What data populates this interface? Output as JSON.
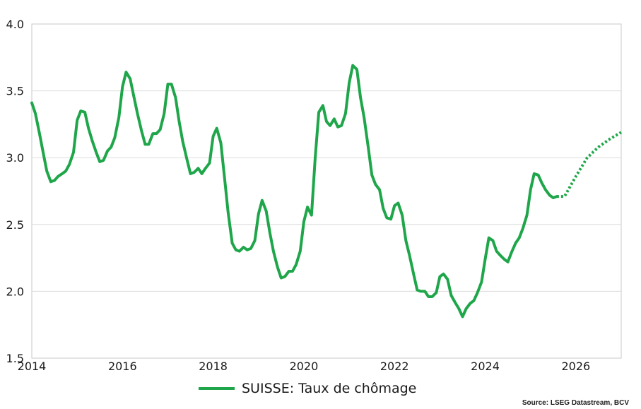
{
  "chart_data": {
    "type": "line",
    "title": "",
    "xlabel": "",
    "ylabel": "",
    "xlim": [
      2014,
      2027
    ],
    "ylim": [
      1.5,
      4.0
    ],
    "x_ticks": [
      {
        "value": 2014,
        "label": "2014"
      },
      {
        "value": 2016,
        "label": "2016"
      },
      {
        "value": 2018,
        "label": "2018"
      },
      {
        "value": 2020,
        "label": "2020"
      },
      {
        "value": 2022,
        "label": "2022"
      },
      {
        "value": 2024,
        "label": "2024"
      },
      {
        "value": 2026,
        "label": "2026"
      }
    ],
    "y_ticks": [
      {
        "value": 1.5,
        "label": "1.5"
      },
      {
        "value": 2.0,
        "label": "2.0"
      },
      {
        "value": 2.5,
        "label": "2.5"
      },
      {
        "value": 3.0,
        "label": "3.0"
      },
      {
        "value": 3.5,
        "label": "3.5"
      },
      {
        "value": 4.0,
        "label": "4.0"
      }
    ],
    "grid": "horizontal",
    "legend_position": "bottom-center",
    "series": [
      {
        "name": "SUISSE: Taux de chômage",
        "color": "#1fa64a",
        "style": "solid",
        "x": [
          2014.0,
          2014.08,
          2014.17,
          2014.25,
          2014.33,
          2014.42,
          2014.5,
          2014.58,
          2014.67,
          2014.75,
          2014.83,
          2014.92,
          2015.0,
          2015.08,
          2015.17,
          2015.25,
          2015.33,
          2015.42,
          2015.5,
          2015.58,
          2015.67,
          2015.75,
          2015.83,
          2015.92,
          2016.0,
          2016.08,
          2016.17,
          2016.25,
          2016.33,
          2016.42,
          2016.5,
          2016.58,
          2016.67,
          2016.75,
          2016.83,
          2016.92,
          2017.0,
          2017.08,
          2017.17,
          2017.25,
          2017.33,
          2017.42,
          2017.5,
          2017.58,
          2017.67,
          2017.75,
          2017.83,
          2017.92,
          2018.0,
          2018.08,
          2018.17,
          2018.25,
          2018.33,
          2018.42,
          2018.5,
          2018.58,
          2018.67,
          2018.75,
          2018.83,
          2018.92,
          2019.0,
          2019.08,
          2019.17,
          2019.25,
          2019.33,
          2019.42,
          2019.5,
          2019.58,
          2019.67,
          2019.75,
          2019.83,
          2019.92,
          2020.0,
          2020.08,
          2020.17,
          2020.25,
          2020.33,
          2020.42,
          2020.5,
          2020.58,
          2020.67,
          2020.75,
          2020.83,
          2020.92,
          2021.0,
          2021.08,
          2021.17,
          2021.25,
          2021.33,
          2021.42,
          2021.5,
          2021.58,
          2021.67,
          2021.75,
          2021.83,
          2021.92,
          2022.0,
          2022.08,
          2022.17,
          2022.25,
          2022.33,
          2022.42,
          2022.5,
          2022.58,
          2022.67,
          2022.75,
          2022.83,
          2022.92,
          2023.0,
          2023.08,
          2023.17,
          2023.25,
          2023.33,
          2023.42,
          2023.5,
          2023.58,
          2023.67,
          2023.75,
          2023.83,
          2023.92,
          2024.0,
          2024.08,
          2024.17,
          2024.25,
          2024.33,
          2024.42,
          2024.5,
          2024.58,
          2024.67,
          2024.75,
          2024.83,
          2024.92,
          2025.0,
          2025.08,
          2025.17,
          2025.25,
          2025.33,
          2025.42,
          2025.5,
          2025.58
        ],
        "y": [
          3.41,
          3.33,
          3.18,
          3.04,
          2.9,
          2.82,
          2.83,
          2.86,
          2.88,
          2.9,
          2.95,
          3.04,
          3.28,
          3.35,
          3.34,
          3.22,
          3.13,
          3.04,
          2.97,
          2.98,
          3.05,
          3.08,
          3.15,
          3.3,
          3.53,
          3.64,
          3.59,
          3.46,
          3.33,
          3.2,
          3.1,
          3.1,
          3.18,
          3.18,
          3.21,
          3.33,
          3.55,
          3.55,
          3.45,
          3.27,
          3.12,
          2.99,
          2.88,
          2.89,
          2.92,
          2.88,
          2.92,
          2.96,
          3.16,
          3.22,
          3.11,
          2.85,
          2.59,
          2.36,
          2.31,
          2.3,
          2.33,
          2.31,
          2.32,
          2.38,
          2.58,
          2.68,
          2.6,
          2.44,
          2.3,
          2.18,
          2.1,
          2.11,
          2.15,
          2.15,
          2.2,
          2.3,
          2.52,
          2.63,
          2.57,
          3.0,
          3.34,
          3.39,
          3.27,
          3.24,
          3.29,
          3.23,
          3.24,
          3.33,
          3.56,
          3.69,
          3.66,
          3.45,
          3.3,
          3.08,
          2.87,
          2.8,
          2.76,
          2.62,
          2.55,
          2.54,
          2.64,
          2.66,
          2.57,
          2.38,
          2.27,
          2.13,
          2.01,
          2.0,
          2.0,
          1.96,
          1.96,
          1.99,
          2.11,
          2.13,
          2.09,
          1.97,
          1.92,
          1.87,
          1.81,
          1.87,
          1.91,
          1.93,
          1.99,
          2.07,
          2.24,
          2.4,
          2.38,
          2.3,
          2.27,
          2.24,
          2.22,
          2.29,
          2.36,
          2.4,
          2.47,
          2.57,
          2.76,
          2.88,
          2.87,
          2.81,
          2.76,
          2.72,
          2.7,
          2.71
        ]
      },
      {
        "name": "",
        "color": "#1fa64a",
        "style": "dotted",
        "x": [
          2025.58,
          2025.75,
          2026.0,
          2026.25,
          2026.5,
          2026.75,
          2027.0
        ],
        "y": [
          2.71,
          2.71,
          2.86,
          3.0,
          3.08,
          3.14,
          3.19
        ]
      }
    ],
    "source": "Source: LSEG Datastream, BCV"
  }
}
